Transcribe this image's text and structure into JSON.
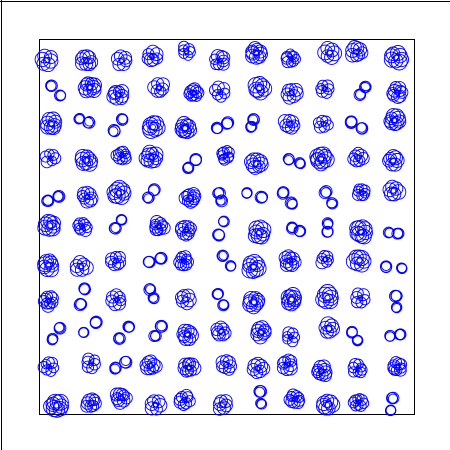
{
  "colors": {
    "background": "#ffffff",
    "outer_frame": "#000000",
    "plot_frame": "#000000",
    "glyph_stroke": "#0000ff"
  },
  "glyph": {
    "shape": "clusters of overlapping small circles (rosettes / pairs)",
    "stroke_color": "#0000ff"
  }
}
